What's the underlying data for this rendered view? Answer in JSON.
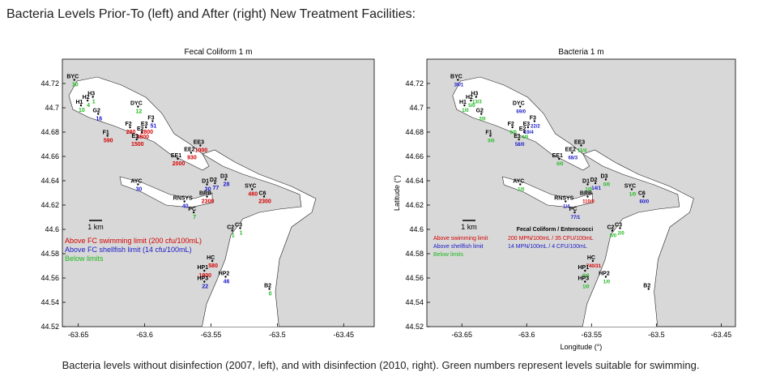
{
  "title": "Bacteria Levels Prior-To (left) and After (right) New Treatment Facilities:",
  "caption": "Bacteria levels without disinfection (2007, left), and with disinfection (2010, right). Green numbers represent levels suitable for swimming.",
  "colors": {
    "red": "#d40000",
    "blue": "#1a1ac8",
    "green": "#1fb81f"
  },
  "stations": [
    {
      "name": "BYC",
      "lon": -63.653,
      "lat": 44.723
    },
    {
      "name": "H3",
      "lon": -63.639,
      "lat": 44.709
    },
    {
      "name": "H2",
      "lon": -63.643,
      "lat": 44.706
    },
    {
      "name": "H1",
      "lon": -63.648,
      "lat": 44.702
    },
    {
      "name": "G2",
      "lon": -63.635,
      "lat": 44.695
    },
    {
      "name": "DYC",
      "lon": -63.605,
      "lat": 44.701
    },
    {
      "name": "F3",
      "lon": -63.594,
      "lat": 44.689
    },
    {
      "name": "F2",
      "lon": -63.611,
      "lat": 44.684
    },
    {
      "name": "F1",
      "lon": -63.628,
      "lat": 44.677
    },
    {
      "name": "E3",
      "lon": -63.599,
      "lat": 44.684
    },
    {
      "name": "E2",
      "lon": -63.602,
      "lat": 44.68
    },
    {
      "name": "E1",
      "lon": -63.606,
      "lat": 44.674
    },
    {
      "name": "EE3",
      "lon": -63.558,
      "lat": 44.669
    },
    {
      "name": "EE2",
      "lon": -63.565,
      "lat": 44.663
    },
    {
      "name": "EE1",
      "lon": -63.575,
      "lat": 44.658
    },
    {
      "name": "D3",
      "lon": -63.539,
      "lat": 44.641
    },
    {
      "name": "D2",
      "lon": -63.547,
      "lat": 44.638
    },
    {
      "name": "D1",
      "lon": -63.553,
      "lat": 44.637
    },
    {
      "name": "AYC",
      "lon": -63.605,
      "lat": 44.637
    },
    {
      "name": "BRB",
      "lon": -63.553,
      "lat": 44.627
    },
    {
      "name": "RNSYS",
      "lon": -63.57,
      "lat": 44.623
    },
    {
      "name": "PC",
      "lon": -63.563,
      "lat": 44.614
    },
    {
      "name": "SYC",
      "lon": -63.519,
      "lat": 44.633
    },
    {
      "name": "C6",
      "lon": -63.51,
      "lat": 44.627
    },
    {
      "name": "C3",
      "lon": -63.528,
      "lat": 44.601
    },
    {
      "name": "C2",
      "lon": -63.534,
      "lat": 44.599
    },
    {
      "name": "HC",
      "lon": -63.549,
      "lat": 44.574
    },
    {
      "name": "HP1",
      "lon": -63.555,
      "lat": 44.566
    },
    {
      "name": "HP2",
      "lon": -63.539,
      "lat": 44.561
    },
    {
      "name": "HP3",
      "lon": -63.555,
      "lat": 44.557
    },
    {
      "name": "B2",
      "lon": -63.506,
      "lat": 44.551
    }
  ],
  "maps": [
    {
      "title": "Fecal Coliform 1 m",
      "xlim": [
        -63.662,
        -63.427
      ],
      "ylim": [
        44.52,
        44.74
      ],
      "xticks": [
        -63.65,
        -63.6,
        -63.55,
        -63.5,
        -63.45
      ],
      "yticks": [
        44.52,
        44.54,
        44.56,
        44.58,
        44.6,
        44.62,
        44.64,
        44.66,
        44.68,
        44.7,
        44.72
      ],
      "scale_label": "1 km",
      "values": [
        10,
        1,
        4,
        10,
        16,
        12,
        51,
        280,
        590,
        2800,
        3800,
        1500,
        1000,
        930,
        2000,
        28,
        77,
        30,
        30,
        2300,
        40,
        7,
        460,
        2300,
        1,
        1,
        580,
        1900,
        46,
        22,
        0
      ],
      "value_colors": [
        "green",
        "green",
        "green",
        "green",
        "blue",
        "green",
        "blue",
        "red",
        "red",
        "red",
        "red",
        "red",
        "red",
        "red",
        "red",
        "blue",
        "blue",
        "blue",
        "blue",
        "red",
        "blue",
        "green",
        "red",
        "red",
        "green",
        "green",
        "red",
        "red",
        "blue",
        "blue",
        "green"
      ],
      "legend": [
        {
          "text": "Above FC swimming limit (200 cfu/100mL)",
          "color": "red"
        },
        {
          "text": "Above FC shellfish limit (14 cfu/100mL)",
          "color": "blue"
        },
        {
          "text": "Below limits",
          "color": "green"
        }
      ]
    },
    {
      "title": "Bacteria 1 m",
      "xlabel": "Longitude (°)",
      "ylabel": "Latitude (°)",
      "xlim": [
        -63.677,
        -63.439
      ],
      "ylim": [
        44.52,
        44.74
      ],
      "xticks": [
        -63.65,
        -63.6,
        -63.55,
        -63.5,
        -63.45
      ],
      "yticks": [
        44.52,
        44.54,
        44.56,
        44.58,
        44.6,
        44.62,
        44.64,
        44.66,
        44.68,
        44.7,
        44.72
      ],
      "scale_label": "1 km",
      "values": [
        "39/1",
        "13/3",
        "5/0",
        "1/0",
        "2/0",
        "69/0",
        "22/2",
        "0/0",
        "0/0",
        "19/4",
        "4/0",
        "58/0",
        "11/4",
        "68/3",
        "0/0",
        "0/0",
        "14/1",
        "1/0",
        "1/0",
        "110/0",
        "1/4",
        "77/1",
        "1/0",
        "60/0",
        "2/0",
        "0/0",
        "740/31",
        "0/0",
        "1/0",
        "1/0",
        null
      ],
      "value_colors": [
        "blue",
        "green",
        "green",
        "green",
        "green",
        "blue",
        "blue",
        "green",
        "green",
        "blue",
        "green",
        "blue",
        "green",
        "blue",
        "green",
        "green",
        "blue",
        "green",
        "green",
        "red",
        "blue",
        "blue",
        "green",
        "blue",
        "green",
        "green",
        "red",
        "green",
        "green",
        "green",
        null
      ],
      "legend_title": "Fecal Coliform / Enterococci",
      "legend": [
        {
          "text": "Above swimming limit",
          "detail": "200 MPN/100mL / 35 CFU/100mL",
          "color": "red"
        },
        {
          "text": "Above shellfish limit",
          "detail": "14 MPN/100mL / 4 CFU/100mL",
          "color": "blue"
        },
        {
          "text": "Below limits",
          "color": "green"
        }
      ]
    }
  ]
}
